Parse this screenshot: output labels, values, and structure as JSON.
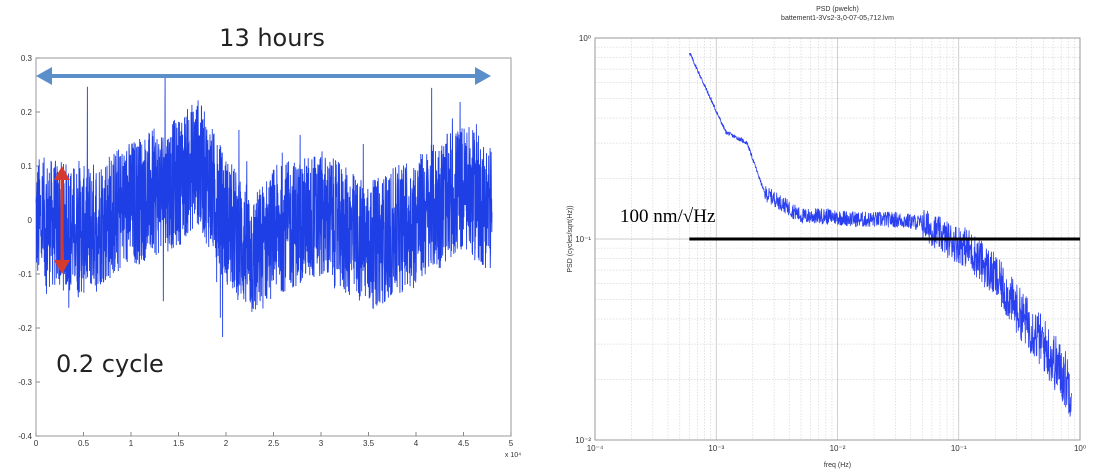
{
  "chart_data": [
    {
      "type": "line",
      "description_role": "time series",
      "x": [
        0,
        0.5,
        1,
        1.5,
        1.7,
        2,
        2.3,
        2.5,
        3,
        3.5,
        4,
        4.5,
        4.8
      ],
      "center": [
        0.0,
        -0.02,
        0.03,
        0.07,
        0.11,
        0.0,
        -0.07,
        -0.02,
        0.01,
        -0.05,
        0.0,
        0.06,
        0.02
      ],
      "amplitude": 0.12,
      "xlim": [
        0,
        5
      ],
      "ylim": [
        -0.4,
        0.3
      ],
      "xticks": [
        "0",
        "0.5",
        "1",
        "1.5",
        "2",
        "2.5",
        "3",
        "3.5",
        "4",
        "4.5",
        "5"
      ],
      "yticks": [
        "0.3",
        "0.2",
        "0.1",
        "0",
        "-0.1",
        "-0.2",
        "-0.3",
        "-0.4"
      ],
      "xmultiplier": "x 10⁴",
      "color": "#1f3fe6",
      "annotations": {
        "span_label": "13 hours",
        "amplitude_label": "0.2 cycle"
      }
    },
    {
      "type": "line",
      "title_line1": "PSD (pwelch)",
      "title_line2": "battement1-3Vs2-3₁0-07-05₁712.lvm",
      "xlabel": "freq (Hz)",
      "ylabel": "PSD (cycles/sqrt(Hz))",
      "xscale": "log",
      "yscale": "log",
      "xlim": [
        0.0001,
        1
      ],
      "ylim": [
        0.01,
        1
      ],
      "x": [
        0.0006,
        0.0012,
        0.0018,
        0.0025,
        0.0035,
        0.005,
        0.008,
        0.015,
        0.03,
        0.05,
        0.08,
        0.12,
        0.2,
        0.3,
        0.5,
        0.85
      ],
      "y": [
        0.85,
        0.34,
        0.3,
        0.17,
        0.15,
        0.13,
        0.13,
        0.125,
        0.125,
        0.12,
        0.1,
        0.09,
        0.065,
        0.045,
        0.03,
        0.018
      ],
      "color": "#2a3ff0",
      "grid": true,
      "xticks": [
        "10⁻⁴",
        "10⁻³",
        "10⁻²",
        "10⁻¹",
        "10⁰"
      ],
      "yticks": [
        "10⁰",
        "10⁻¹",
        "10⁻²"
      ],
      "hline": {
        "y": 0.1,
        "x_from": 0.0006,
        "x_to": 1,
        "label": "100 nm/√Hz"
      }
    }
  ]
}
